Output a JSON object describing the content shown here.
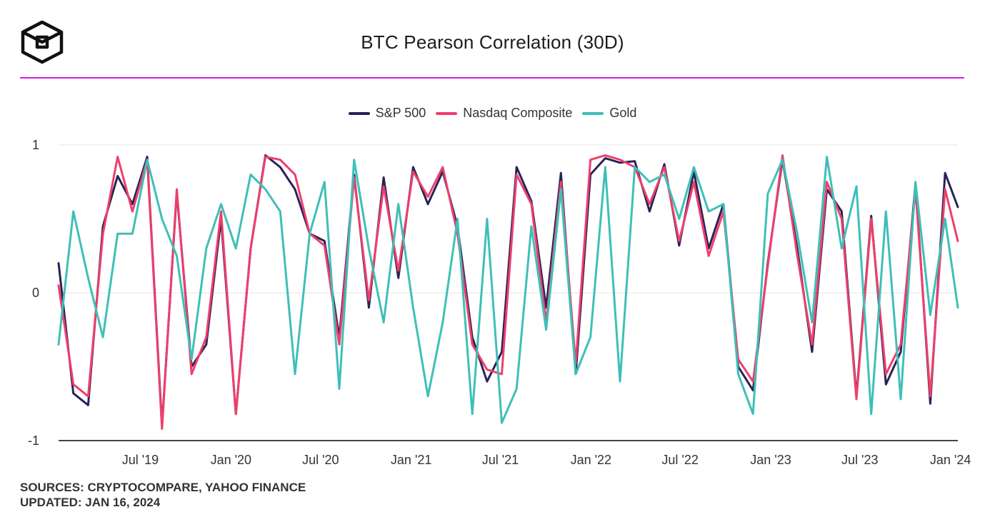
{
  "title": "BTC Pearson Correlation (30D)",
  "footer": {
    "sources": "SOURCES: CRYPTOCOMPARE, YAHOO FINANCE",
    "updated": "UPDATED: JAN 16, 2024"
  },
  "colors": {
    "sp500": "#2b2257",
    "nasdaq": "#ee3f6c",
    "gold": "#3ebfb8",
    "divider": "#d51fe0"
  },
  "chart_data": {
    "type": "line",
    "title": "BTC Pearson Correlation (30D)",
    "xlabel": "",
    "ylabel": "",
    "ylim": [
      -1,
      1
    ],
    "y_ticks": [
      {
        "value": 1,
        "label": "1"
      },
      {
        "value": 0,
        "label": "0"
      },
      {
        "value": -1,
        "label": "-1"
      }
    ],
    "x_ticks": [
      {
        "date": "2019-07-01",
        "label": "Jul '19"
      },
      {
        "date": "2020-01-01",
        "label": "Jan '20"
      },
      {
        "date": "2020-07-01",
        "label": "Jul '20"
      },
      {
        "date": "2021-01-01",
        "label": "Jan '21"
      },
      {
        "date": "2021-07-01",
        "label": "Jul '21"
      },
      {
        "date": "2022-01-01",
        "label": "Jan '22"
      },
      {
        "date": "2022-07-01",
        "label": "Jul '22"
      },
      {
        "date": "2023-01-01",
        "label": "Jan '23"
      },
      {
        "date": "2023-07-01",
        "label": "Jul '23"
      },
      {
        "date": "2024-01-01",
        "label": "Jan '24"
      }
    ],
    "x_range": [
      "2019-01-16",
      "2024-01-16"
    ],
    "legend_position": "top-center",
    "grid": "horizontal",
    "x": [
      "2019-01-16",
      "2019-02-15",
      "2019-03-17",
      "2019-04-16",
      "2019-05-16",
      "2019-06-15",
      "2019-07-15",
      "2019-08-14",
      "2019-09-13",
      "2019-10-13",
      "2019-11-12",
      "2019-12-12",
      "2020-01-11",
      "2020-02-10",
      "2020-03-11",
      "2020-04-10",
      "2020-05-10",
      "2020-06-09",
      "2020-07-09",
      "2020-08-08",
      "2020-09-07",
      "2020-10-07",
      "2020-11-06",
      "2020-12-06",
      "2021-01-05",
      "2021-02-04",
      "2021-03-06",
      "2021-04-05",
      "2021-05-05",
      "2021-06-04",
      "2021-07-04",
      "2021-08-03",
      "2021-09-02",
      "2021-10-02",
      "2021-11-01",
      "2021-12-01",
      "2021-12-31",
      "2022-01-30",
      "2022-03-01",
      "2022-03-31",
      "2022-04-30",
      "2022-05-30",
      "2022-06-29",
      "2022-07-29",
      "2022-08-28",
      "2022-09-27",
      "2022-10-27",
      "2022-11-26",
      "2022-12-26",
      "2023-01-25",
      "2023-02-24",
      "2023-03-26",
      "2023-04-25",
      "2023-05-25",
      "2023-06-24",
      "2023-07-24",
      "2023-08-23",
      "2023-09-22",
      "2023-10-22",
      "2023-11-21",
      "2023-12-21",
      "2024-01-16"
    ],
    "series": [
      {
        "name": "S&P 500",
        "color": "#2b2257",
        "values": [
          0.2,
          -0.68,
          -0.76,
          0.45,
          0.79,
          0.6,
          0.92,
          -0.9,
          0.68,
          -0.5,
          -0.35,
          0.5,
          -0.82,
          0.3,
          0.93,
          0.85,
          0.7,
          0.4,
          0.35,
          -0.3,
          0.8,
          -0.1,
          0.78,
          0.1,
          0.85,
          0.6,
          0.82,
          0.45,
          -0.3,
          -0.6,
          -0.4,
          0.85,
          0.62,
          -0.1,
          0.81,
          -0.55,
          0.8,
          0.91,
          0.88,
          0.89,
          0.55,
          0.87,
          0.32,
          0.82,
          0.3,
          0.6,
          -0.5,
          -0.66,
          0.2,
          0.9,
          0.3,
          -0.4,
          0.7,
          0.55,
          -0.7,
          0.52,
          -0.62,
          -0.4,
          0.74,
          -0.75,
          0.81,
          0.58
        ]
      },
      {
        "name": "Nasdaq Composite",
        "color": "#ee3f6c",
        "values": [
          0.05,
          -0.62,
          -0.7,
          0.4,
          0.92,
          0.55,
          0.9,
          -0.92,
          0.7,
          -0.55,
          -0.3,
          0.55,
          -0.82,
          0.3,
          0.92,
          0.9,
          0.8,
          0.4,
          0.32,
          -0.35,
          0.78,
          -0.05,
          0.72,
          0.15,
          0.82,
          0.65,
          0.85,
          0.4,
          -0.35,
          -0.52,
          -0.55,
          0.8,
          0.6,
          -0.2,
          0.75,
          -0.48,
          0.9,
          0.93,
          0.9,
          0.85,
          0.6,
          0.85,
          0.35,
          0.75,
          0.25,
          0.55,
          -0.45,
          -0.6,
          0.18,
          0.93,
          0.25,
          -0.35,
          0.75,
          0.5,
          -0.72,
          0.5,
          -0.55,
          -0.35,
          0.7,
          -0.7,
          0.7,
          0.35
        ]
      },
      {
        "name": "Gold",
        "color": "#3ebfb8",
        "values": [
          -0.35,
          0.55,
          0.1,
          -0.3,
          0.4,
          0.4,
          0.9,
          0.5,
          0.25,
          -0.45,
          0.3,
          0.6,
          0.3,
          0.8,
          0.7,
          0.55,
          -0.55,
          0.4,
          0.75,
          -0.65,
          0.9,
          0.3,
          -0.2,
          0.6,
          -0.1,
          -0.7,
          -0.2,
          0.5,
          -0.82,
          0.5,
          -0.88,
          -0.65,
          0.45,
          -0.25,
          0.7,
          -0.55,
          -0.3,
          0.85,
          -0.6,
          0.85,
          0.75,
          0.8,
          0.5,
          0.85,
          0.55,
          0.6,
          -0.55,
          -0.82,
          0.67,
          0.9,
          0.4,
          -0.2,
          0.92,
          0.3,
          0.72,
          -0.82,
          0.55,
          -0.72,
          0.75,
          -0.15,
          0.5,
          -0.1
        ]
      }
    ]
  }
}
